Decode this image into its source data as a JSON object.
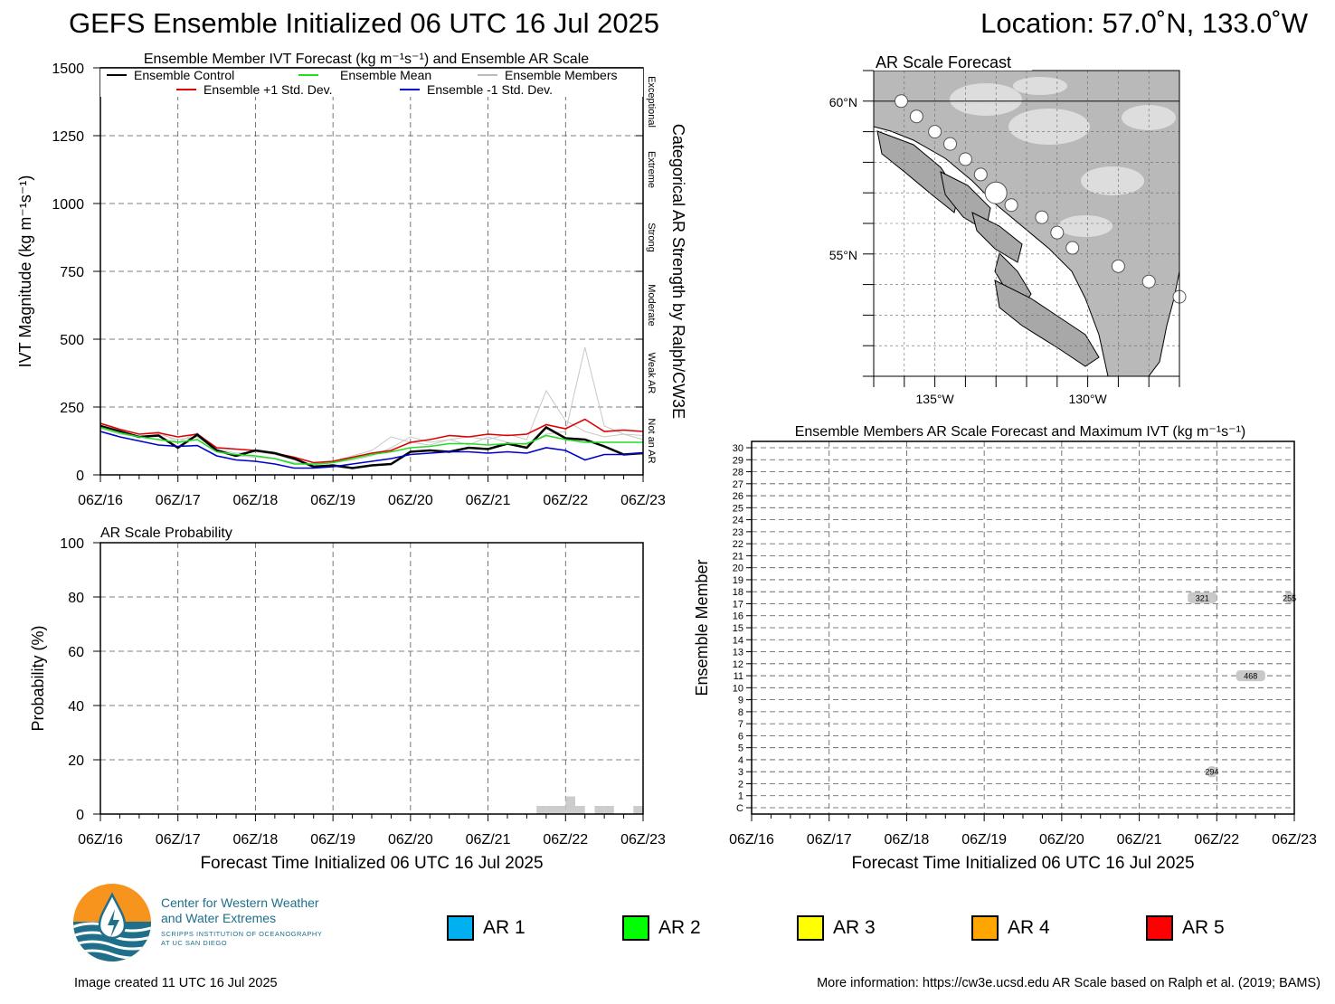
{
  "header": {
    "title": "GEFS Ensemble Initialized 06 UTC 16 Jul 2025",
    "location": "Location: 57.0˚N, 133.0˚W"
  },
  "footer": {
    "created": "Image created 11 UTC 16 Jul 2025",
    "more_info": "More information: https://cw3e.ucsd.edu AR Scale based on Ralph et al. (2019; BAMS)"
  },
  "logo": {
    "line1": "Center for Western Weather",
    "line2": "and Water Extremes",
    "line3": "SCRIPPS INSTITUTION OF OCEANOGRAPHY",
    "line4": "AT UC SAN DIEGO"
  },
  "ar_legend": [
    {
      "label": "AR 1",
      "color": "#00b0f0"
    },
    {
      "label": "AR 2",
      "color": "#00ff00"
    },
    {
      "label": "AR 3",
      "color": "#ffff00"
    },
    {
      "label": "AR 4",
      "color": "#ffa500"
    },
    {
      "label": "AR 5",
      "color": "#ff0000"
    }
  ],
  "chart_data": [
    {
      "id": "ivt",
      "type": "line",
      "title": "Ensemble Member IVT Forecast (kg m⁻¹s⁻¹) and Ensemble AR Scale",
      "ylabel": "IVT Magnitude (kg m⁻¹s⁻¹)",
      "right_label": "Categorical AR Strength by Ralph/CW3E",
      "x_ticklabels": [
        "06Z/16",
        "06Z/17",
        "06Z/18",
        "06Z/19",
        "06Z/20",
        "06Z/21",
        "06Z/22",
        "06Z/23"
      ],
      "xlim": [
        0,
        168
      ],
      "ylim": [
        0,
        1500
      ],
      "y_ticks": [
        0,
        250,
        500,
        750,
        1000,
        1250,
        1500
      ],
      "grid": true,
      "categories": [
        {
          "label": "Not an AR",
          "range": [
            0,
            250
          ]
        },
        {
          "label": "Weak AR",
          "range": [
            250,
            500
          ]
        },
        {
          "label": "Moderate",
          "range": [
            500,
            750
          ]
        },
        {
          "label": "Strong",
          "range": [
            750,
            1000
          ]
        },
        {
          "label": "Extreme",
          "range": [
            1000,
            1250
          ]
        },
        {
          "label": "Exceptional",
          "range": [
            1250,
            1500
          ]
        }
      ],
      "legend": [
        {
          "label": "Ensemble Control",
          "color": "#000000"
        },
        {
          "label": "Ensemble Mean",
          "color": "#22dd22"
        },
        {
          "label": "Ensemble Members",
          "color": "#bbbbbb"
        },
        {
          "label": "Ensemble +1 Std. Dev.",
          "color": "#e00000"
        },
        {
          "label": "Ensemble -1 Std. Dev.",
          "color": "#0000cc"
        }
      ],
      "x": [
        0,
        6,
        12,
        18,
        24,
        30,
        36,
        42,
        48,
        54,
        60,
        66,
        72,
        78,
        84,
        90,
        96,
        102,
        108,
        114,
        120,
        126,
        132,
        138,
        144,
        150,
        156,
        162,
        168
      ],
      "series": [
        {
          "name": "Ensemble +1 Std. Dev.",
          "color": "#e00000",
          "values": [
            190,
            168,
            150,
            155,
            140,
            150,
            100,
            95,
            90,
            80,
            65,
            45,
            50,
            65,
            80,
            90,
            120,
            130,
            145,
            140,
            150,
            145,
            150,
            185,
            170,
            205,
            160,
            165,
            160
          ]
        },
        {
          "name": "Ensemble Control",
          "color": "#000000",
          "values": [
            180,
            160,
            140,
            145,
            100,
            148,
            90,
            70,
            90,
            80,
            60,
            30,
            35,
            25,
            35,
            40,
            85,
            90,
            85,
            100,
            95,
            115,
            100,
            175,
            135,
            130,
            105,
            75,
            80
          ]
        },
        {
          "name": "Ensemble Mean",
          "color": "#22dd22",
          "values": [
            175,
            155,
            140,
            130,
            120,
            130,
            85,
            75,
            70,
            60,
            40,
            40,
            45,
            60,
            75,
            85,
            100,
            105,
            115,
            115,
            110,
            115,
            115,
            145,
            130,
            120,
            120,
            120,
            120
          ]
        },
        {
          "name": "Ensemble -1 Std. Dev.",
          "color": "#0000cc",
          "values": [
            160,
            140,
            125,
            110,
            105,
            108,
            70,
            55,
            50,
            40,
            25,
            25,
            30,
            40,
            50,
            60,
            75,
            80,
            85,
            85,
            80,
            85,
            80,
            100,
            90,
            55,
            75,
            75,
            80
          ]
        }
      ],
      "members": [
        [
          185,
          165,
          150,
          160,
          120,
          155,
          95,
          80,
          85,
          75,
          55,
          35,
          45,
          55,
          70,
          100,
          140,
          120,
          130,
          110,
          140,
          120,
          110,
          150,
          160,
          470,
          180,
          150,
          130
        ],
        [
          170,
          150,
          140,
          150,
          130,
          140,
          90,
          70,
          65,
          60,
          45,
          40,
          50,
          70,
          90,
          140,
          120,
          110,
          130,
          140,
          130,
          150,
          130,
          310,
          200,
          160,
          140,
          150,
          145
        ]
      ]
    },
    {
      "id": "prob",
      "type": "bar",
      "title": "AR Scale Probability",
      "ylabel": "Probability (%)",
      "xlabel": "Forecast Time Initialized 06 UTC 16 Jul 2025",
      "x_ticklabels": [
        "06Z/16",
        "06Z/17",
        "06Z/18",
        "06Z/19",
        "06Z/20",
        "06Z/21",
        "06Z/22",
        "06Z/23"
      ],
      "xlim": [
        0,
        168
      ],
      "ylim": [
        0,
        100
      ],
      "y_ticks": [
        0,
        20,
        40,
        60,
        80,
        100
      ],
      "grid": true,
      "bar_width_hours": 3,
      "series": [
        {
          "color": "#cccccc",
          "x": [
            135,
            138,
            141,
            144,
            147,
            150,
            153,
            156,
            165
          ],
          "values": [
            3,
            3,
            3,
            6.5,
            3,
            0,
            3,
            3,
            3
          ]
        }
      ]
    },
    {
      "id": "members",
      "type": "table",
      "title": "Ensemble Members AR Scale Forecast and Maximum IVT (kg m⁻¹s⁻¹)",
      "ylabel": "Ensemble Member",
      "xlabel": "Forecast Time Initialized 06 UTC 16 Jul 2025",
      "x_ticklabels": [
        "06Z/16",
        "06Z/17",
        "06Z/18",
        "06Z/19",
        "06Z/20",
        "06Z/21",
        "06Z/22",
        "06Z/23"
      ],
      "xlim": [
        0,
        168
      ],
      "y_ticklabels": [
        "C",
        "1",
        "2",
        "3",
        "4",
        "5",
        "6",
        "7",
        "8",
        "9",
        "10",
        "11",
        "12",
        "13",
        "14",
        "15",
        "16",
        "17",
        "18",
        "19",
        "20",
        "21",
        "22",
        "23",
        "24",
        "25",
        "26",
        "27",
        "28",
        "29",
        "30"
      ],
      "grid": true,
      "events": [
        {
          "member": 17.5,
          "start": 135,
          "end": 144,
          "max_ivt": "321"
        },
        {
          "member": 17.5,
          "start": 165,
          "end": 168,
          "max_ivt": "255"
        },
        {
          "member": 11,
          "start": 150,
          "end": 159,
          "max_ivt": "468"
        },
        {
          "member": 3,
          "start": 141,
          "end": 144,
          "max_ivt": "294"
        }
      ]
    },
    {
      "id": "map",
      "type": "map",
      "title": "AR Scale Forecast",
      "lat_labels": [
        "60°N",
        "55°N"
      ],
      "lon_labels": [
        "135°W",
        "130°W"
      ],
      "lat_ticks": [
        60,
        55
      ],
      "lon_ticks": [
        -135,
        -130
      ],
      "extent": {
        "lon": [
          -137,
          -127
        ],
        "lat": [
          51,
          61
        ]
      },
      "points": [
        {
          "lon": -136.1,
          "lat": 60.0,
          "size": 1
        },
        {
          "lon": -135.6,
          "lat": 59.5,
          "size": 1
        },
        {
          "lon": -135.0,
          "lat": 59.0,
          "size": 1
        },
        {
          "lon": -134.5,
          "lat": 58.6,
          "size": 1
        },
        {
          "lon": -134.0,
          "lat": 58.1,
          "size": 1
        },
        {
          "lon": -133.5,
          "lat": 57.6,
          "size": 1
        },
        {
          "lon": -133.0,
          "lat": 57.0,
          "size": 2
        },
        {
          "lon": -132.5,
          "lat": 56.6,
          "size": 1
        },
        {
          "lon": -131.5,
          "lat": 56.2,
          "size": 1
        },
        {
          "lon": -131.0,
          "lat": 55.7,
          "size": 1
        },
        {
          "lon": -130.5,
          "lat": 55.2,
          "size": 1
        },
        {
          "lon": -129.0,
          "lat": 54.6,
          "size": 1
        },
        {
          "lon": -128.0,
          "lat": 54.1,
          "size": 1
        },
        {
          "lon": -127.0,
          "lat": 53.6,
          "size": 1
        }
      ]
    }
  ]
}
